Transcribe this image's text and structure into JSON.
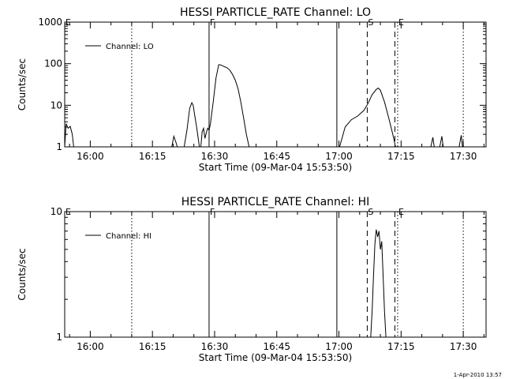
{
  "chart_data": [
    {
      "type": "line",
      "title": "HESSI PARTICLE_RATE Channel: LO",
      "xlabel": "Start Time (09-Mar-04 15:53:50)",
      "ylabel": "Counts/sec",
      "y_scale": "log",
      "xlim": [
        "15:53:50",
        "17:35:30"
      ],
      "ylim": [
        1,
        1000
      ],
      "x_ticks": [
        "16:00",
        "16:15",
        "16:30",
        "16:45",
        "17:00",
        "17:15",
        "17:30"
      ],
      "y_ticks": [
        "1",
        "10",
        "100",
        "1000"
      ],
      "legend": {
        "position": "top-left",
        "entries": [
          "Channel: LO"
        ]
      },
      "series": [
        {
          "name": "Channel: LO",
          "segments": [
            {
              "x": [
                "15:53:50",
                "15:54:10",
                "15:54:40",
                "15:55:10",
                "15:55:40",
                "15:56:00"
              ],
              "y": [
                1,
                3.6,
                2.8,
                3.1,
                2,
                1
              ]
            },
            {
              "x": [
                "16:19:40",
                "16:20:10",
                "16:20:40",
                "16:21:00"
              ],
              "y": [
                1,
                1.8,
                1.3,
                1
              ]
            },
            {
              "x": [
                "16:22:40",
                "16:23:20",
                "16:24:00",
                "16:24:30",
                "16:24:50",
                "16:25:10",
                "16:25:40",
                "16:26:20"
              ],
              "y": [
                1,
                2.5,
                8.5,
                11.5,
                10,
                6,
                3,
                1
              ]
            },
            {
              "x": [
                "16:26:40",
                "16:27:00",
                "16:27:20",
                "16:27:40",
                "16:28:00",
                "16:28:20",
                "16:28:40",
                "16:29:00"
              ],
              "y": [
                1,
                2.3,
                2.8,
                1.6,
                2.2,
                2.8,
                2.5,
                3.6
              ]
            },
            {
              "x": [
                "16:29:00",
                "16:29:40",
                "16:30:20",
                "16:31:00",
                "16:31:40",
                "16:32:20",
                "16:33:00",
                "16:33:40",
                "16:34:20",
                "16:35:00",
                "16:35:40",
                "16:36:20",
                "16:37:00",
                "16:37:40",
                "16:38:20"
              ],
              "y": [
                3.6,
                12,
                45,
                95,
                92,
                85,
                80,
                70,
                55,
                40,
                25,
                12,
                5,
                2,
                1
              ]
            },
            {
              "x": [
                "17:00:10",
                "17:01:30",
                "17:03:00",
                "17:04:30",
                "17:06:00",
                "17:07:00",
                "17:08:00",
                "17:09:00",
                "17:09:30",
                "17:10:00",
                "17:11:00",
                "17:12:00",
                "17:13:00",
                "17:13:40"
              ],
              "y": [
                1,
                3,
                4.5,
                5.5,
                7.5,
                11,
                18,
                24,
                26,
                23,
                12,
                5,
                2,
                1
              ]
            },
            {
              "x": [
                "17:22:10",
                "17:22:40",
                "17:23:00"
              ],
              "y": [
                1,
                1.7,
                1
              ]
            },
            {
              "x": [
                "17:24:20",
                "17:24:50",
                "17:25:10"
              ],
              "y": [
                1,
                1.8,
                1
              ]
            },
            {
              "x": [
                "17:29:00",
                "17:29:30",
                "17:29:50"
              ],
              "y": [
                1,
                1.9,
                1
              ]
            }
          ]
        }
      ],
      "annotations": [
        {
          "text": "E",
          "x": "15:53:50",
          "line": "none"
        },
        {
          "text": "F",
          "x": "16:28:40",
          "line": "solid"
        },
        {
          "text": "S",
          "x": "17:06:50",
          "line": "dashed"
        },
        {
          "text": "E",
          "x": "17:14:10",
          "line": "dotted"
        }
      ],
      "vertical_lines": [
        {
          "x": "16:10:00",
          "style": "dotted"
        },
        {
          "x": "16:59:30",
          "style": "solid"
        },
        {
          "x": "17:13:30",
          "style": "dashed"
        },
        {
          "x": "17:30:00",
          "style": "dotted"
        }
      ]
    },
    {
      "type": "line",
      "title": "HESSI PARTICLE_RATE Channel: HI",
      "xlabel": "Start Time (09-Mar-04 15:53:50)",
      "ylabel": "Counts/sec",
      "y_scale": "log",
      "xlim": [
        "15:53:50",
        "17:35:30"
      ],
      "ylim": [
        1,
        10
      ],
      "x_ticks": [
        "16:00",
        "16:15",
        "16:30",
        "16:45",
        "17:00",
        "17:15",
        "17:30"
      ],
      "y_ticks": [
        "1",
        "10"
      ],
      "legend": {
        "position": "top-left",
        "entries": [
          "Channel: HI"
        ]
      },
      "series": [
        {
          "name": "Channel: HI",
          "segments": [
            {
              "x": [
                "17:07:40",
                "17:08:00",
                "17:08:20",
                "17:08:40",
                "17:09:00",
                "17:09:20",
                "17:09:40",
                "17:10:00",
                "17:10:20",
                "17:10:40",
                "17:11:00",
                "17:11:20"
              ],
              "y": [
                1,
                1.6,
                3,
                5.5,
                7.2,
                6.3,
                7,
                5,
                5.8,
                3,
                1.6,
                1
              ]
            }
          ]
        }
      ],
      "annotations": [
        {
          "text": "E",
          "x": "15:53:50",
          "line": "none"
        },
        {
          "text": "F",
          "x": "16:28:40",
          "line": "solid"
        },
        {
          "text": "S",
          "x": "17:06:50",
          "line": "dashed"
        },
        {
          "text": "E",
          "x": "17:14:10",
          "line": "dotted"
        }
      ],
      "vertical_lines": [
        {
          "x": "16:10:00",
          "style": "dotted"
        },
        {
          "x": "16:59:30",
          "style": "solid"
        },
        {
          "x": "17:13:30",
          "style": "dashed"
        },
        {
          "x": "17:30:00",
          "style": "dotted"
        }
      ]
    }
  ],
  "footer": {
    "timestamp": "1-Apr-2010 13:57"
  }
}
